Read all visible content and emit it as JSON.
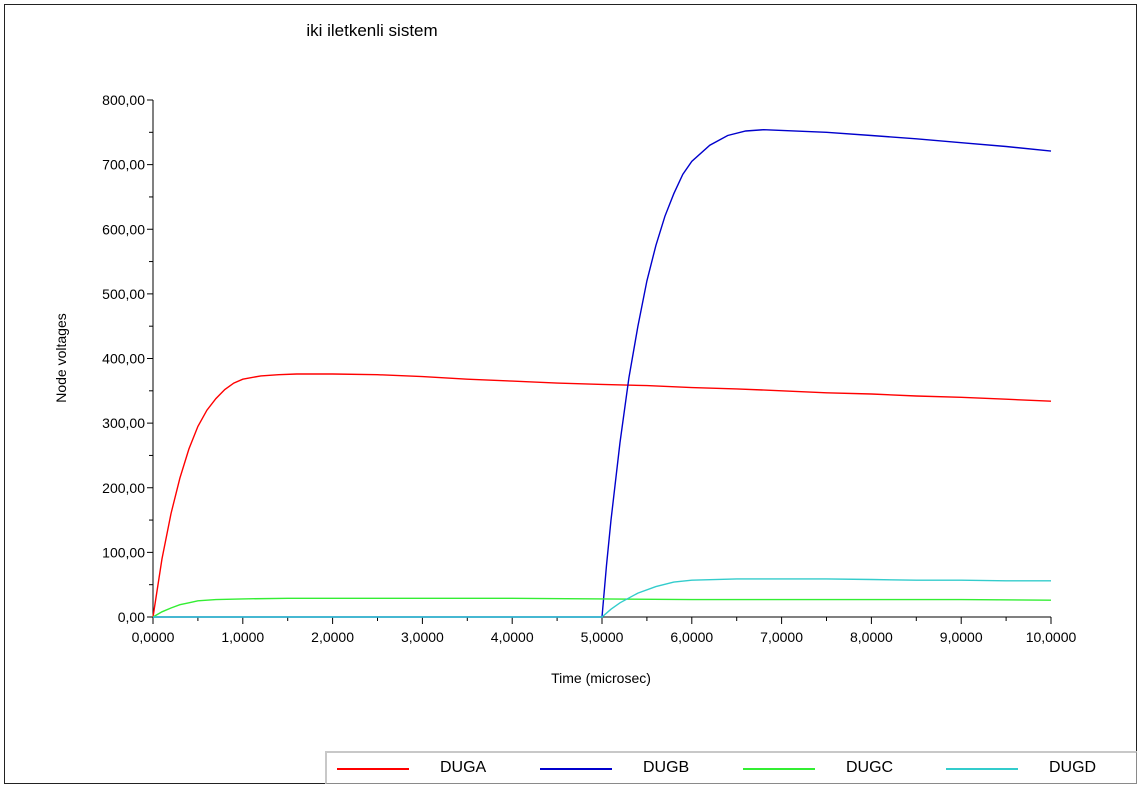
{
  "chart_data": {
    "type": "line",
    "title": "iki iletkenli sistem",
    "xlabel": "Time (microsec)",
    "ylabel": "Node voltages",
    "xlim": [
      0,
      10
    ],
    "ylim": [
      0,
      800
    ],
    "x_ticks": [
      "0,0000",
      "1,0000",
      "2,0000",
      "3,0000",
      "4,0000",
      "5,0000",
      "6,0000",
      "7,0000",
      "8,0000",
      "9,0000",
      "10,0000"
    ],
    "y_ticks": [
      "0,00",
      "100,00",
      "200,00",
      "300,00",
      "400,00",
      "500,00",
      "600,00",
      "700,00",
      "800,00"
    ],
    "grid": false,
    "legend_position": "bottom-right",
    "series": [
      {
        "name": "DUGA",
        "color": "#ff0000",
        "x": [
          0,
          0.1,
          0.2,
          0.3,
          0.4,
          0.5,
          0.6,
          0.7,
          0.8,
          0.9,
          1.0,
          1.2,
          1.4,
          1.6,
          1.8,
          2.0,
          2.5,
          3.0,
          3.5,
          4.0,
          4.5,
          5.0,
          5.5,
          6.0,
          6.5,
          7.0,
          7.5,
          8.0,
          8.5,
          9.0,
          9.5,
          10.0
        ],
        "y": [
          0,
          90,
          160,
          215,
          260,
          295,
          320,
          338,
          352,
          362,
          368,
          373,
          375,
          376,
          376,
          376,
          375,
          372,
          368,
          365,
          362,
          360,
          358,
          355,
          353,
          350,
          347,
          345,
          342,
          340,
          337,
          334
        ]
      },
      {
        "name": "DUGB",
        "color": "#0000cc",
        "x": [
          0,
          5.0,
          5.05,
          5.1,
          5.2,
          5.3,
          5.4,
          5.5,
          5.6,
          5.7,
          5.8,
          5.9,
          6.0,
          6.2,
          6.4,
          6.6,
          6.8,
          7.0,
          7.5,
          8.0,
          8.5,
          9.0,
          9.5,
          10.0
        ],
        "y": [
          0,
          0,
          80,
          150,
          270,
          370,
          450,
          520,
          575,
          620,
          655,
          685,
          705,
          730,
          745,
          752,
          754,
          753,
          750,
          745,
          740,
          734,
          728,
          721
        ]
      },
      {
        "name": "DUGC",
        "color": "#33ee33",
        "x": [
          0,
          0.1,
          0.2,
          0.3,
          0.4,
          0.5,
          0.7,
          1.0,
          1.5,
          2.0,
          3.0,
          4.0,
          5.0,
          6.0,
          7.0,
          8.0,
          9.0,
          10.0
        ],
        "y": [
          0,
          8,
          14,
          19,
          22,
          25,
          27,
          28,
          29,
          29,
          29,
          29,
          28,
          27,
          27,
          27,
          27,
          26
        ]
      },
      {
        "name": "DUGD",
        "color": "#33cccc",
        "x": [
          0,
          5.0,
          5.1,
          5.2,
          5.4,
          5.6,
          5.8,
          6.0,
          6.5,
          7.0,
          7.5,
          8.0,
          8.5,
          9.0,
          9.5,
          10.0
        ],
        "y": [
          0,
          0,
          12,
          22,
          37,
          47,
          54,
          57,
          59,
          59,
          59,
          58,
          57,
          57,
          56,
          56
        ]
      }
    ]
  }
}
